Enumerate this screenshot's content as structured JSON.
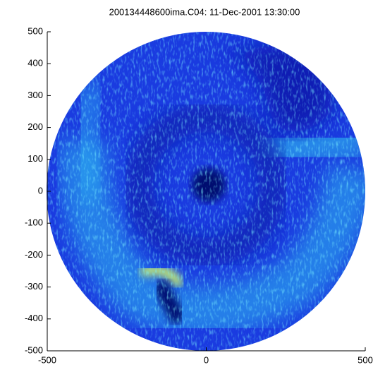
{
  "chart_data": {
    "type": "image",
    "title": "200134448600ima.C04: 11-Dec-2001 13:30:00",
    "xlim": [
      -500,
      500
    ],
    "xticks": [
      -500,
      0,
      500
    ],
    "ylim": [
      -500,
      500
    ],
    "yticks": [
      500,
      400,
      300,
      200,
      100,
      0,
      -100,
      -200,
      -300,
      -400,
      -500
    ]
  }
}
